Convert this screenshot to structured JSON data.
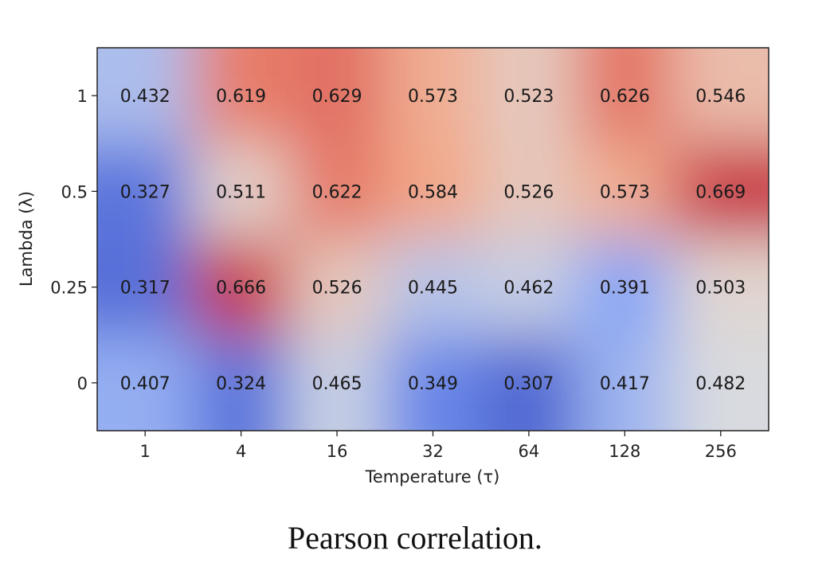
{
  "chart_data": {
    "type": "heatmap",
    "xlabel": "Temperature (τ)",
    "ylabel": "Lambda (λ)",
    "x_categories": [
      "1",
      "4",
      "16",
      "32",
      "64",
      "128",
      "256"
    ],
    "y_categories": [
      "1",
      "0.5",
      "0.25",
      "0"
    ],
    "values": [
      [
        0.432,
        0.619,
        0.629,
        0.573,
        0.523,
        0.626,
        0.546
      ],
      [
        0.327,
        0.511,
        0.622,
        0.584,
        0.526,
        0.573,
        0.669
      ],
      [
        0.317,
        0.666,
        0.526,
        0.445,
        0.462,
        0.391,
        0.503
      ],
      [
        0.407,
        0.324,
        0.465,
        0.349,
        0.307,
        0.417,
        0.482
      ]
    ],
    "colormap": "coolwarm",
    "interpolated": true,
    "color_range": [
      0.307,
      0.669
    ]
  },
  "caption": "Pearson correlation."
}
